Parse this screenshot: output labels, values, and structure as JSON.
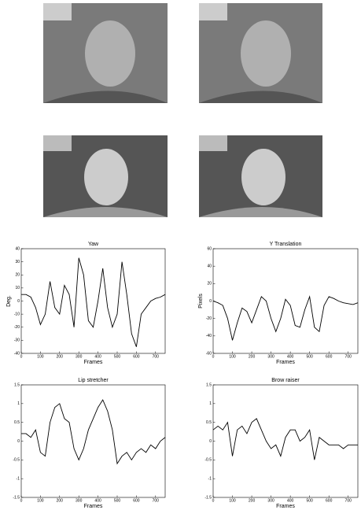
{
  "chart_data": [
    {
      "type": "line",
      "title": "Yaw",
      "xlabel": "Frames",
      "ylabel": "Deg.",
      "x": [
        0,
        25,
        50,
        75,
        100,
        125,
        150,
        175,
        200,
        225,
        250,
        275,
        300,
        325,
        350,
        375,
        400,
        425,
        450,
        475,
        500,
        525,
        550,
        575,
        600,
        625,
        650,
        675,
        700,
        725,
        750
      ],
      "values": [
        5,
        5,
        3,
        -5,
        -18,
        -10,
        15,
        -5,
        -10,
        12,
        5,
        -20,
        33,
        20,
        -15,
        -20,
        0,
        25,
        -5,
        -20,
        -10,
        30,
        5,
        -25,
        -35,
        -10,
        -5,
        0,
        2,
        3,
        5
      ],
      "xlim": [
        0,
        750
      ],
      "ylim": [
        -40,
        40
      ],
      "xticks": [
        0,
        100,
        200,
        300,
        400,
        500,
        600,
        700
      ],
      "yticks": [
        -40,
        -30,
        -20,
        -10,
        0,
        10,
        20,
        30,
        40
      ]
    },
    {
      "type": "line",
      "title": "Y Translation",
      "xlabel": "Frames",
      "ylabel": "Pixels",
      "x": [
        0,
        25,
        50,
        75,
        100,
        125,
        150,
        175,
        200,
        225,
        250,
        275,
        300,
        325,
        350,
        375,
        400,
        425,
        450,
        475,
        500,
        525,
        550,
        575,
        600,
        625,
        650,
        675,
        700,
        725,
        750
      ],
      "values": [
        0,
        -2,
        -5,
        -20,
        -45,
        -25,
        -8,
        -12,
        -25,
        -10,
        5,
        0,
        -20,
        -35,
        -20,
        2,
        -5,
        -28,
        -30,
        -10,
        5,
        -30,
        -35,
        -5,
        5,
        3,
        0,
        -2,
        -3,
        -4,
        -2
      ],
      "xlim": [
        0,
        750
      ],
      "ylim": [
        -60,
        60
      ],
      "xticks": [
        0,
        100,
        200,
        300,
        400,
        500,
        600,
        700
      ],
      "yticks": [
        -60,
        -40,
        -20,
        0,
        20,
        40,
        60
      ]
    },
    {
      "type": "line",
      "title": "Lip stretcher",
      "xlabel": "Frames",
      "x": [
        0,
        25,
        50,
        75,
        100,
        125,
        150,
        175,
        200,
        225,
        250,
        275,
        300,
        325,
        350,
        375,
        400,
        425,
        450,
        475,
        500,
        525,
        550,
        575,
        600,
        625,
        650,
        675,
        700,
        725,
        750
      ],
      "values": [
        0.2,
        0.2,
        0.1,
        0.3,
        -0.3,
        -0.4,
        0.5,
        0.9,
        1.0,
        0.6,
        0.5,
        -0.2,
        -0.5,
        -0.2,
        0.3,
        0.6,
        0.9,
        1.1,
        0.8,
        0.3,
        -0.6,
        -0.4,
        -0.3,
        -0.5,
        -0.3,
        -0.2,
        -0.3,
        -0.1,
        -0.2,
        0,
        0.1
      ],
      "xlim": [
        0,
        750
      ],
      "ylim": [
        -1.5,
        1.5
      ],
      "xticks": [
        0,
        100,
        200,
        300,
        400,
        500,
        600,
        700
      ],
      "yticks": [
        -1.5,
        -1,
        -0.5,
        0,
        0.5,
        1,
        1.5
      ]
    },
    {
      "type": "line",
      "title": "Brow raiser",
      "xlabel": "Frames",
      "x": [
        0,
        25,
        50,
        75,
        100,
        125,
        150,
        175,
        200,
        225,
        250,
        275,
        300,
        325,
        350,
        375,
        400,
        425,
        450,
        475,
        500,
        525,
        550,
        575,
        600,
        625,
        650,
        675,
        700,
        725,
        750
      ],
      "values": [
        0.3,
        0.4,
        0.3,
        0.5,
        -0.4,
        0.3,
        0.4,
        0.2,
        0.5,
        0.6,
        0.3,
        0,
        -0.2,
        -0.1,
        -0.4,
        0.1,
        0.3,
        0.3,
        0,
        0.1,
        0.3,
        -0.5,
        0.1,
        0,
        -0.1,
        -0.1,
        -0.1,
        -0.2,
        -0.1,
        -0.1,
        -0.1
      ],
      "xlim": [
        0,
        750
      ],
      "ylim": [
        -1.5,
        1.5
      ],
      "xticks": [
        0,
        100,
        200,
        300,
        400,
        500,
        600,
        700
      ],
      "yticks": [
        -1.5,
        -1,
        -0.5,
        0,
        0.5,
        1,
        1.5
      ]
    }
  ]
}
